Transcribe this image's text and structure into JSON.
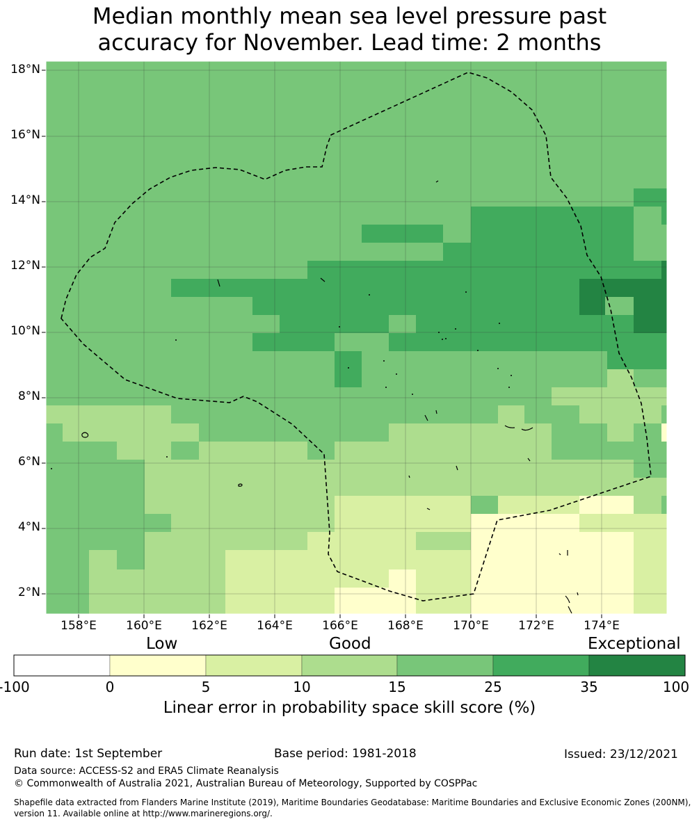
{
  "title": {
    "line1": "Median monthly mean sea level pressure past",
    "line2": "accuracy for November. Lead time: 2 months"
  },
  "map": {
    "lat_labels": [
      "18°N",
      "16°N",
      "14°N",
      "12°N",
      "10°N",
      "8°N",
      "6°N",
      "4°N",
      "2°N"
    ],
    "lon_labels": [
      "158°E",
      "160°E",
      "162°E",
      "164°E",
      "166°E",
      "168°E",
      "170°E",
      "172°E",
      "174°E"
    ],
    "grid_lines": true,
    "boundary_line": "dashed black EEZ outline"
  },
  "legend": {
    "categories": {
      "low": "Low",
      "good": "Good",
      "exceptional": "Exceptional"
    },
    "ticks": [
      "-100",
      "0",
      "5",
      "10",
      "15",
      "25",
      "35",
      "100"
    ],
    "bins": [
      {
        "range": "-100 to 0",
        "color": "#ffffff"
      },
      {
        "range": "0 to 5",
        "color": "#ffffcc"
      },
      {
        "range": "5 to 10",
        "color": "#d9f0a3"
      },
      {
        "range": "10 to 15",
        "color": "#addd8e"
      },
      {
        "range": "15 to 25",
        "color": "#78c679"
      },
      {
        "range": "25 to 35",
        "color": "#41ab5d"
      },
      {
        "range": "35 to 100",
        "color": "#238443"
      }
    ],
    "caption": "Linear error in probability space skill score (%)"
  },
  "footer": {
    "run_date": "Run date: 1st September",
    "base_period": "Base period: 1981-2018",
    "issued": "Issued: 23/12/2021",
    "data_source": "Data source: ACCESS-S2 and ERA5 Climate Reanalysis",
    "copyright": "© Commonwealth of Australia 2021, Australian Bureau of Meteorology, Supported by COSPPac",
    "shapefile_line1": "Shapefile data extracted from Flanders Marine Institute (2019), Maritime Boundaries Geodatabase: Maritime Boundaries and Exclusive Economic Zones (200NM),",
    "shapefile_line2": "version 11. Available online at http://www.marineregions.org/."
  }
}
